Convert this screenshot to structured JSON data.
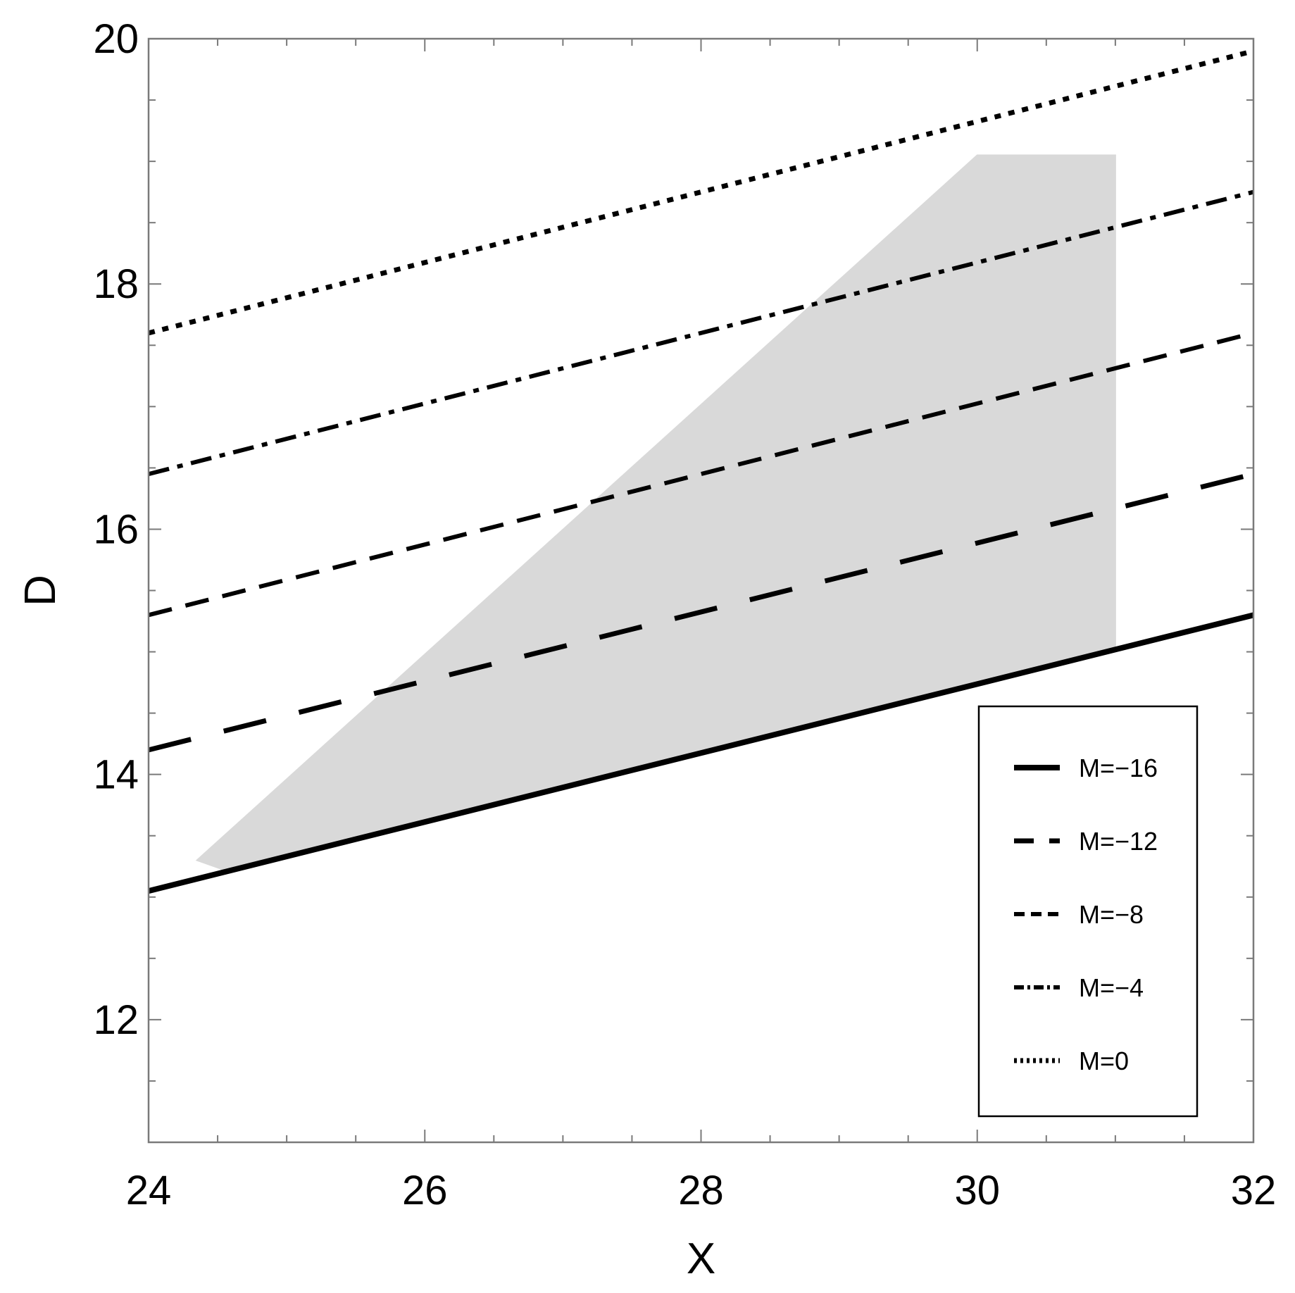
{
  "chart_data": {
    "type": "line",
    "xlabel": "X",
    "ylabel": "D",
    "xlim": [
      24,
      32
    ],
    "ylim": [
      11,
      20
    ],
    "x_ticks": [
      24,
      26,
      28,
      30,
      32
    ],
    "y_ticks": [
      12,
      14,
      16,
      18,
      20
    ],
    "grid": false,
    "legend_position": "bottom-right",
    "series": [
      {
        "name": "M=−16",
        "style": "solid",
        "x": [
          24,
          32
        ],
        "y": [
          13.05,
          15.3
        ]
      },
      {
        "name": "M=−12",
        "style": "long-dash",
        "x": [
          24,
          32
        ],
        "y": [
          14.2,
          16.45
        ]
      },
      {
        "name": "M=−8",
        "style": "dash",
        "x": [
          24,
          32
        ],
        "y": [
          15.3,
          17.6
        ]
      },
      {
        "name": "M=−4",
        "style": "dash-dot",
        "x": [
          24,
          32
        ],
        "y": [
          16.45,
          18.75
        ]
      },
      {
        "name": "M=0",
        "style": "dot",
        "x": [
          24,
          32
        ],
        "y": [
          17.6,
          19.9
        ]
      }
    ],
    "shaded_region": {
      "color": "#d9d9d9",
      "x": [
        24.35,
        24.55,
        31.0,
        31.0,
        30.0,
        24.35
      ],
      "y": [
        13.3,
        13.22,
        15.04,
        19.05,
        19.05,
        13.3
      ]
    }
  }
}
